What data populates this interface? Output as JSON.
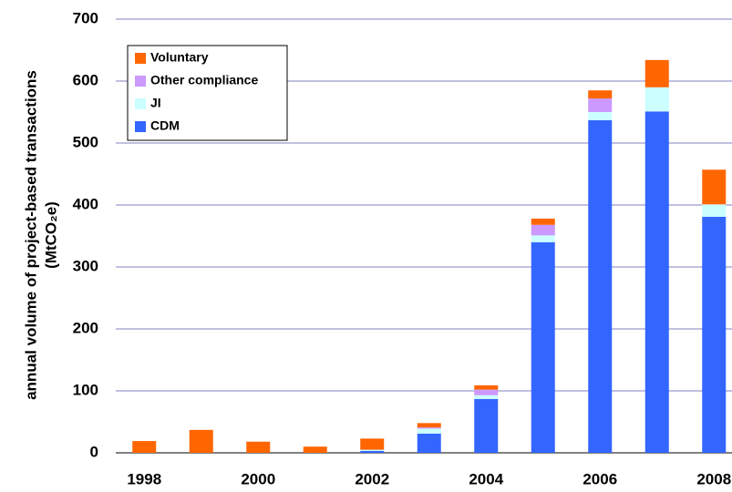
{
  "chart_data": {
    "type": "stacked-bar",
    "y_label": [
      "annual volume of project-based transactions",
      "(MtCO₂e)"
    ],
    "categories": [
      "1998",
      null,
      "2000",
      null,
      "2002",
      null,
      "2004",
      null,
      "2006",
      null,
      "2008"
    ],
    "series": [
      {
        "name": "CDM",
        "color": "#3366ff",
        "values": [
          0,
          0,
          0,
          0,
          3,
          31,
          87,
          340,
          537,
          551,
          381
        ]
      },
      {
        "name": "JI",
        "color": "#ccffff",
        "values": [
          0,
          0,
          0,
          0,
          2,
          8,
          6,
          11,
          13,
          39,
          20
        ]
      },
      {
        "name": "Other compliance",
        "color": "#cc99ff",
        "values": [
          0,
          0,
          0,
          0,
          0,
          2,
          9,
          17,
          22,
          0,
          0
        ]
      },
      {
        "name": "Voluntary",
        "color": "#ff6600",
        "values": [
          19,
          37,
          18,
          10,
          18,
          7,
          7,
          10,
          13,
          44,
          56
        ]
      }
    ],
    "ylim": [
      0,
      700
    ],
    "yticks": [
      0,
      100,
      200,
      300,
      400,
      500,
      600,
      700
    ],
    "grid": true
  }
}
